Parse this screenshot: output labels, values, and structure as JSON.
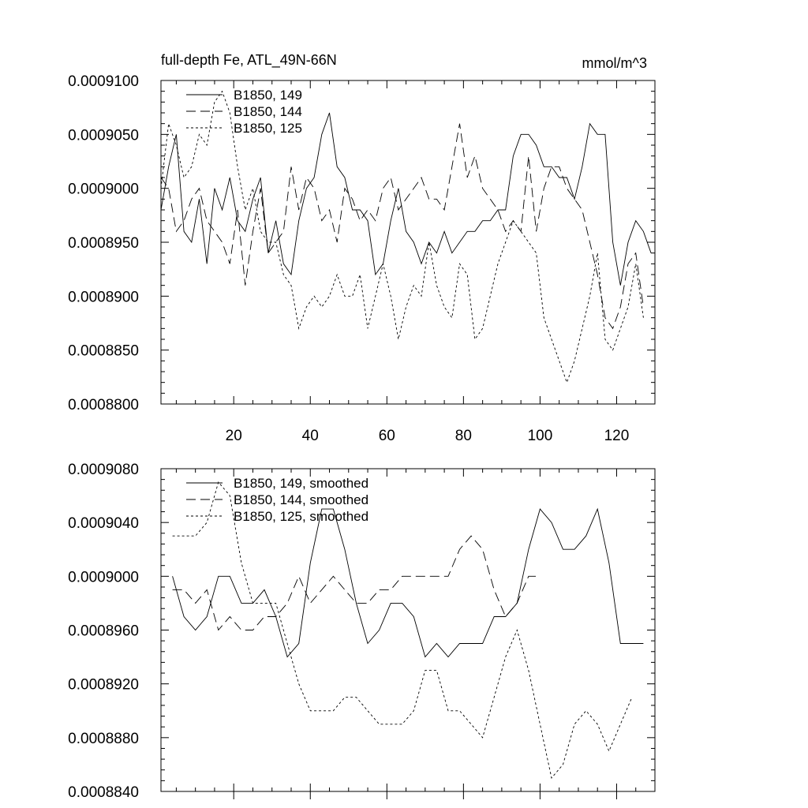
{
  "chart_data": [
    {
      "type": "line",
      "title": "full-depth Fe, ATL_49N-66N",
      "units": "mmol/m^3",
      "xlim": [
        1,
        130
      ],
      "ylim": [
        0.00088,
        0.00091
      ],
      "y_ticks": [
        0.00088,
        0.000885,
        0.00089,
        0.000895,
        0.0009,
        0.000905,
        0.00091
      ],
      "y_tick_labels": [
        "0.0008800",
        "0.0008850",
        "0.0008900",
        "0.0008950",
        "0.0009000",
        "0.0009050",
        "0.0009100"
      ],
      "x_ticks": [
        20,
        40,
        60,
        80,
        100,
        120
      ],
      "x_tick_labels": [
        "20",
        "40",
        "60",
        "80",
        "100",
        "120"
      ],
      "legend": [
        "B1850, 149",
        "B1850, 144",
        "B1850, 125"
      ],
      "series": [
        {
          "name": "B1850, 149",
          "dash": "solid",
          "x": [
            1,
            3,
            5,
            7,
            9,
            11,
            13,
            15,
            17,
            19,
            21,
            23,
            25,
            27,
            29,
            31,
            33,
            35,
            37,
            39,
            41,
            43,
            45,
            47,
            49,
            51,
            53,
            55,
            57,
            59,
            61,
            63,
            65,
            67,
            69,
            71,
            73,
            75,
            77,
            79,
            81,
            83,
            85,
            87,
            89,
            91,
            93,
            95,
            97,
            99,
            101,
            103,
            105,
            107,
            109,
            111,
            113,
            115,
            117,
            119,
            121,
            123,
            125,
            127,
            129
          ],
          "y": [
            0.000898,
            0.000902,
            0.000905,
            0.000896,
            0.000895,
            0.000899,
            0.000893,
            0.0009,
            0.000898,
            0.000901,
            0.000897,
            0.000896,
            0.000899,
            0.000901,
            0.000894,
            0.000897,
            0.000893,
            0.000892,
            0.000897,
            0.0009,
            0.000901,
            0.000905,
            0.000907,
            0.000902,
            0.000901,
            0.000898,
            0.000898,
            0.000897,
            0.000892,
            0.000893,
            0.000897,
            0.0009,
            0.000896,
            0.000895,
            0.000893,
            0.000895,
            0.000894,
            0.000896,
            0.000894,
            0.000895,
            0.000896,
            0.000896,
            0.000897,
            0.000897,
            0.000898,
            0.000898,
            0.000903,
            0.000905,
            0.000905,
            0.000904,
            0.000902,
            0.000902,
            0.000901,
            0.000901,
            0.000899,
            0.000902,
            0.000906,
            0.000905,
            0.000905,
            0.000895,
            0.000891,
            0.000895,
            0.000897,
            0.000896,
            0.000894
          ]
        },
        {
          "name": "B1850, 144",
          "dash": "long",
          "x": [
            1,
            3,
            5,
            7,
            9,
            11,
            13,
            15,
            17,
            19,
            21,
            23,
            25,
            27,
            29,
            31,
            33,
            35,
            37,
            39,
            41,
            43,
            45,
            47,
            49,
            51,
            53,
            55,
            57,
            59,
            61,
            63,
            65,
            67,
            69,
            71,
            73,
            75,
            77,
            79,
            81,
            83,
            85,
            87,
            89,
            91,
            93,
            95,
            97,
            99,
            101,
            103,
            105,
            107,
            109,
            111,
            113,
            115,
            117,
            119,
            121,
            123,
            125,
            127
          ],
          "y": [
            0.000901,
            0.0009,
            0.000896,
            0.000897,
            0.000899,
            0.0009,
            0.000897,
            0.000896,
            0.000895,
            0.000893,
            0.000898,
            0.000891,
            0.000896,
            0.0009,
            0.000894,
            0.000895,
            0.000896,
            0.000902,
            0.000898,
            0.000901,
            0.0009,
            0.000897,
            0.000898,
            0.000895,
            0.0009,
            0.000899,
            0.000897,
            0.000898,
            0.000897,
            0.0009,
            0.000901,
            0.000898,
            0.000899,
            0.0009,
            0.000901,
            0.000899,
            0.000899,
            0.000898,
            0.000902,
            0.000906,
            0.000901,
            0.000903,
            0.0009,
            0.000899,
            0.000898,
            0.000896,
            0.000897,
            0.000896,
            0.000903,
            0.000896,
            0.0009,
            0.000902,
            0.000902,
            0.0009,
            0.000899,
            0.000898,
            0.000895,
            0.000892,
            0.000888,
            0.000887,
            0.000889,
            0.000893,
            0.000894,
            0.000889
          ]
        },
        {
          "name": "B1850, 125",
          "dash": "short",
          "x": [
            1,
            3,
            5,
            7,
            9,
            11,
            13,
            15,
            17,
            19,
            21,
            23,
            25,
            27,
            29,
            31,
            33,
            35,
            37,
            39,
            41,
            43,
            45,
            47,
            49,
            51,
            53,
            55,
            57,
            59,
            61,
            63,
            65,
            67,
            69,
            71,
            73,
            75,
            77,
            79,
            81,
            83,
            85,
            87,
            89,
            91,
            93,
            95,
            97,
            99,
            101,
            103,
            105,
            107,
            109,
            111,
            113,
            115,
            117,
            119,
            121,
            123,
            125,
            127
          ],
          "y": [
            0.0009,
            0.000906,
            0.000904,
            0.000901,
            0.000902,
            0.000905,
            0.000904,
            0.000908,
            0.000909,
            0.000907,
            0.000902,
            0.000898,
            0.0009,
            0.000896,
            0.000895,
            0.000895,
            0.000892,
            0.000891,
            0.000887,
            0.000889,
            0.00089,
            0.000889,
            0.00089,
            0.000892,
            0.00089,
            0.00089,
            0.000892,
            0.000887,
            0.00089,
            0.000893,
            0.00089,
            0.000886,
            0.000889,
            0.000891,
            0.00089,
            0.000895,
            0.000891,
            0.000889,
            0.000888,
            0.000893,
            0.000892,
            0.000886,
            0.000887,
            0.00089,
            0.000893,
            0.000895,
            0.000897,
            0.000896,
            0.000895,
            0.000894,
            0.000888,
            0.000886,
            0.000884,
            0.000882,
            0.000884,
            0.000887,
            0.00089,
            0.000894,
            0.000886,
            0.000885,
            0.000887,
            0.000889,
            0.000893,
            0.000888
          ]
        }
      ]
    },
    {
      "type": "line",
      "title": "",
      "units": "",
      "xlim": [
        1,
        130
      ],
      "ylim": [
        0.000884,
        0.000908
      ],
      "y_ticks": [
        0.000884,
        0.000888,
        0.000892,
        0.000896,
        0.0009,
        0.000904,
        0.000908
      ],
      "y_tick_labels": [
        "0.0008840",
        "0.0008880",
        "0.0008920",
        "0.0008960",
        "0.0009000",
        "0.0009040",
        "0.0009080"
      ],
      "x_ticks": [
        20,
        40,
        60,
        80,
        100,
        120
      ],
      "x_tick_labels": [],
      "legend": [
        "B1850, 149, smoothed",
        "B1850, 144, smoothed",
        "B1850, 125, smoothed"
      ],
      "series": [
        {
          "name": "B1850, 149, smoothed",
          "dash": "solid",
          "x": [
            4,
            7,
            10,
            13,
            16,
            19,
            22,
            25,
            28,
            31,
            34,
            37,
            40,
            43,
            46,
            49,
            52,
            55,
            58,
            61,
            64,
            67,
            70,
            73,
            76,
            79,
            82,
            85,
            88,
            91,
            94,
            97,
            100,
            103,
            106,
            109,
            112,
            115,
            118,
            121,
            124,
            127
          ],
          "y": [
            0.0009,
            0.000897,
            0.000896,
            0.000897,
            0.0009,
            0.0009,
            0.000898,
            0.000898,
            0.000899,
            0.000897,
            0.000894,
            0.000895,
            0.000901,
            0.000905,
            0.000905,
            0.000902,
            0.000898,
            0.000895,
            0.000896,
            0.000898,
            0.000898,
            0.000897,
            0.000894,
            0.000895,
            0.000894,
            0.000895,
            0.000895,
            0.000895,
            0.000897,
            0.000897,
            0.000898,
            0.000902,
            0.000905,
            0.000904,
            0.000902,
            0.000902,
            0.000903,
            0.000905,
            0.000901,
            0.000895,
            0.000895,
            0.000895
          ]
        },
        {
          "name": "B1850, 144, smoothed",
          "dash": "long",
          "x": [
            4,
            7,
            10,
            13,
            16,
            19,
            22,
            25,
            28,
            31,
            34,
            37,
            40,
            43,
            46,
            49,
            52,
            55,
            58,
            61,
            64,
            67,
            70,
            73,
            76,
            79,
            82,
            85,
            88,
            91,
            94,
            97,
            100
          ],
          "y": [
            0.000899,
            0.000899,
            0.000898,
            0.000899,
            0.000896,
            0.000897,
            0.000896,
            0.000896,
            0.000897,
            0.000897,
            0.000898,
            0.0009,
            0.000898,
            0.000899,
            0.0009,
            0.000899,
            0.000898,
            0.000898,
            0.000899,
            0.000899,
            0.0009,
            0.0009,
            0.0009,
            0.0009,
            0.0009,
            0.000902,
            0.000903,
            0.000902,
            0.000899,
            0.000897,
            0.000898,
            0.0009,
            0.0009
          ]
        },
        {
          "name": "B1850, 125, smoothed",
          "dash": "short",
          "x": [
            4,
            7,
            10,
            13,
            16,
            19,
            22,
            25,
            28,
            31,
            34,
            37,
            40,
            43,
            46,
            49,
            52,
            55,
            58,
            61,
            64,
            67,
            70,
            73,
            76,
            79,
            82,
            85,
            88,
            91,
            94,
            97,
            100,
            103,
            106,
            109,
            112,
            115,
            118,
            121,
            124
          ],
          "y": [
            0.000903,
            0.000903,
            0.000903,
            0.000904,
            0.000907,
            0.000906,
            0.000901,
            0.000898,
            0.000898,
            0.000898,
            0.000895,
            0.000892,
            0.00089,
            0.00089,
            0.00089,
            0.000891,
            0.000891,
            0.00089,
            0.000889,
            0.000889,
            0.000889,
            0.00089,
            0.000893,
            0.000893,
            0.00089,
            0.00089,
            0.000889,
            0.000888,
            0.000891,
            0.000894,
            0.000896,
            0.000893,
            0.000889,
            0.000885,
            0.000886,
            0.000889,
            0.00089,
            0.000889,
            0.000887,
            0.000889,
            0.000891
          ]
        }
      ]
    }
  ]
}
